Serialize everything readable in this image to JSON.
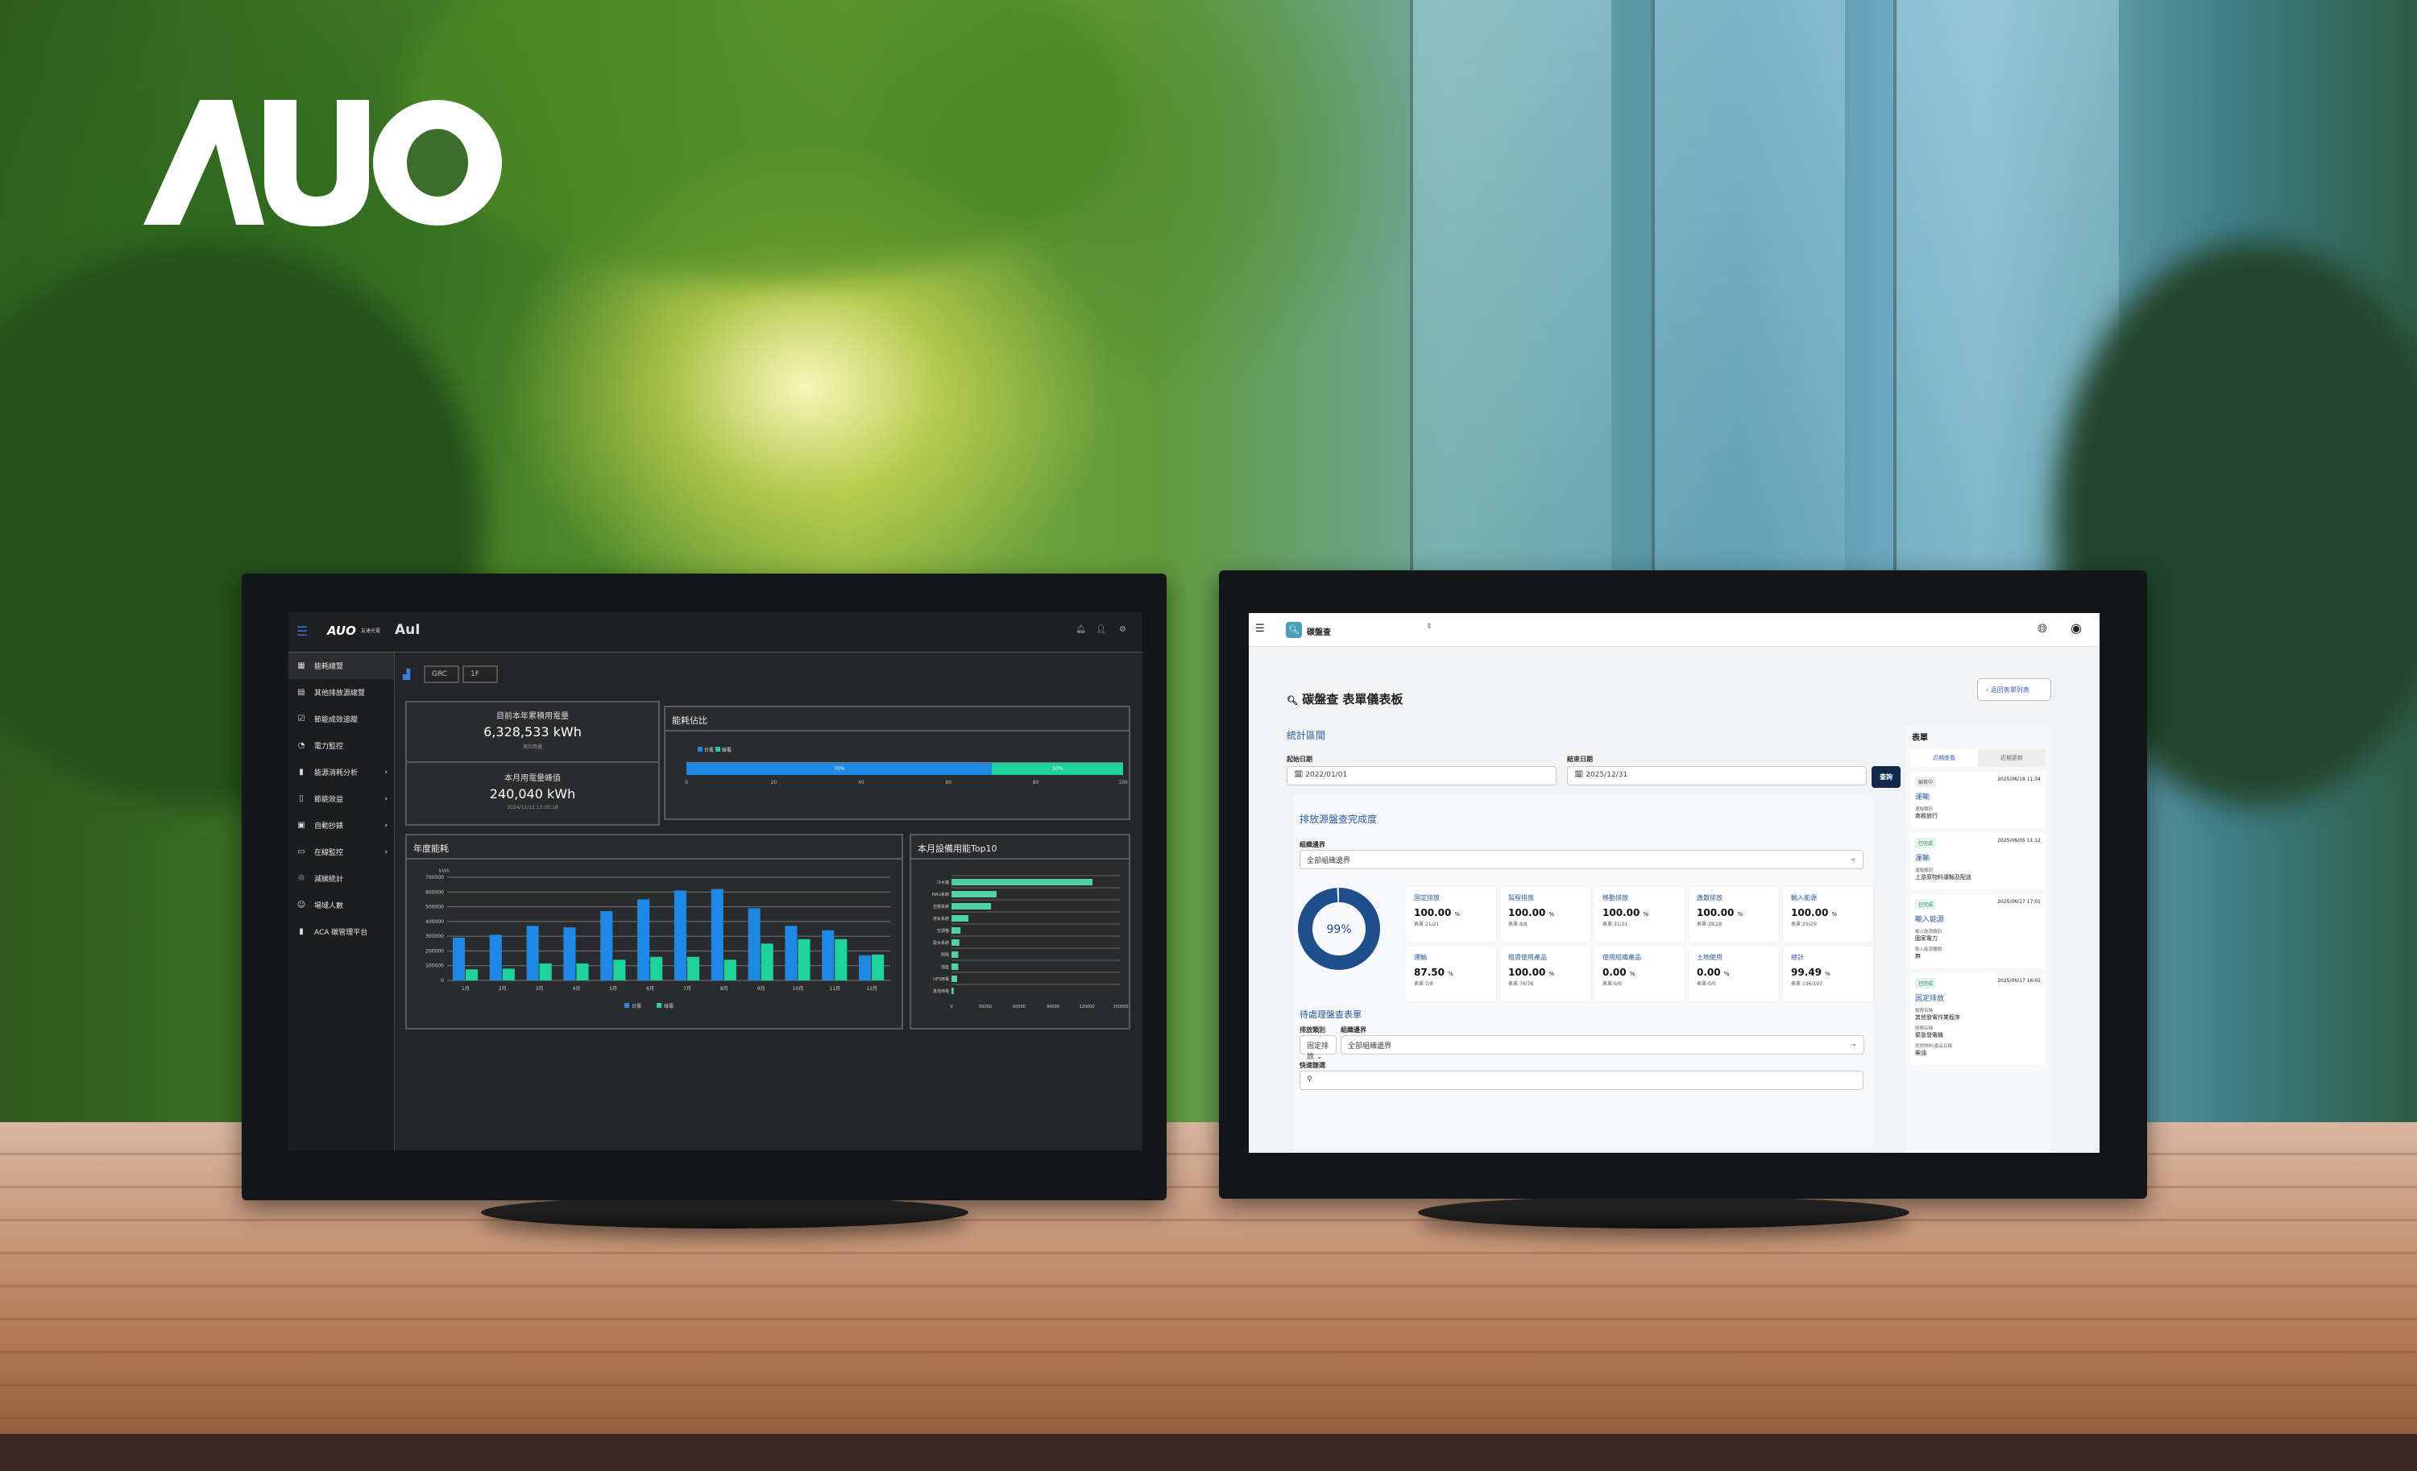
{
  "brand": {
    "logo_text": "AUO"
  },
  "left_dashboard": {
    "logo": "AUO",
    "logo_sub": "友達光電",
    "app_logo": "AuI",
    "sidebar": [
      {
        "label": "能耗總覽",
        "icon": "grid-icon"
      },
      {
        "label": "其他排放源總覽",
        "icon": "table-icon"
      },
      {
        "label": "節能成效追蹤",
        "icon": "checklist-icon"
      },
      {
        "label": "電力監控",
        "icon": "gauge-icon"
      },
      {
        "label": "能源消耗分析",
        "icon": "bar-chart-icon",
        "chevron": "›"
      },
      {
        "label": "節能效益",
        "icon": "phone-icon",
        "chevron": "›"
      },
      {
        "label": "自動抄錶",
        "icon": "meter-icon",
        "chevron": "›"
      },
      {
        "label": "在線監控",
        "icon": "monitor-icon",
        "chevron": "›"
      },
      {
        "label": "減碳統計",
        "icon": "recycle-icon"
      },
      {
        "label": "場域人數",
        "icon": "person-icon"
      },
      {
        "label": "ACA 碳管理平台",
        "icon": "bookmark-icon"
      }
    ],
    "filters": [
      "GRC",
      "1F"
    ],
    "kpi": {
      "annual_label": "目前本年累積用電量",
      "annual_value": "6,328,533 kWh",
      "annual_sub": "案均用量",
      "peak_label": "本月用電量峰值",
      "peak_value": "240,040 kWh",
      "peak_time": "2024/12/12 13:05:18"
    },
    "share": {
      "title": "能耗佔比",
      "legend": [
        "台電",
        "綠電"
      ],
      "values": [
        70,
        30
      ],
      "labels": [
        "70%",
        "30%"
      ],
      "ticks": [
        "0",
        "20",
        "40",
        "60",
        "80",
        "100"
      ],
      "colors": [
        "#1e88e5",
        "#1ed398"
      ]
    }
  },
  "chart_data": [
    {
      "type": "bar",
      "title": "年度能耗",
      "ylabel": "kWh",
      "ylim": [
        0,
        700000
      ],
      "grid": true,
      "legend": "bottom",
      "categories": [
        "1月",
        "2月",
        "3月",
        "4月",
        "5月",
        "6月",
        "7月",
        "8月",
        "9月",
        "10月",
        "11月",
        "12月"
      ],
      "yticks": [
        "0",
        "100000",
        "200000",
        "300000",
        "400000",
        "500000",
        "600000",
        "700000"
      ],
      "series": [
        {
          "name": "台電",
          "color": "#1e88e5",
          "values": [
            290000,
            310000,
            370000,
            360000,
            470000,
            550000,
            610000,
            620000,
            490000,
            370000,
            340000,
            170000
          ]
        },
        {
          "name": "綠電",
          "color": "#1ed398",
          "values": [
            75000,
            80000,
            115000,
            115000,
            140000,
            160000,
            160000,
            140000,
            250000,
            280000,
            280000,
            175000
          ]
        }
      ]
    },
    {
      "type": "bar",
      "orientation": "horizontal",
      "title": "本月設備用能Top10",
      "xlim": [
        0,
        150000
      ],
      "grid": true,
      "categories": [
        "冷水機",
        "MAU系統",
        "空壓系統",
        "排氣系統",
        "空調箱",
        "廢水系統",
        "照明",
        "插座",
        "UPS用電",
        "其他用電"
      ],
      "xticks": [
        "0",
        "30000",
        "60000",
        "90000",
        "120000",
        "150000"
      ],
      "values": [
        125000,
        40000,
        35000,
        15000,
        8000,
        7000,
        6000,
        6000,
        5000,
        2000
      ],
      "color": "#4fd1a1"
    }
  ],
  "right_dashboard": {
    "app_name": "碳盤查",
    "page_title": "碳盤查 表單儀表板",
    "back_button": "返回表單列表",
    "period": {
      "title": "統計區間",
      "start_label": "起始日期",
      "start_value": "2022/01/01",
      "end_label": "結束日期",
      "end_value": "2025/12/31",
      "query": "查詢"
    },
    "completion": {
      "title": "排放源盤查完成度",
      "boundary_label": "組織邊界",
      "boundary_value": "全部組織邊界",
      "donut_label": "99%",
      "donut_value": 99,
      "stats": [
        {
          "name": "固定排放",
          "value": "100.00",
          "unit": "%",
          "count": "表單:21/21"
        },
        {
          "name": "製程排放",
          "value": "100.00",
          "unit": "%",
          "count": "表單:8/8"
        },
        {
          "name": "移動排放",
          "value": "100.00",
          "unit": "%",
          "count": "表單:31/31"
        },
        {
          "name": "逸散排放",
          "value": "100.00",
          "unit": "%",
          "count": "表單:28/28"
        },
        {
          "name": "輸入能源",
          "value": "100.00",
          "unit": "%",
          "count": "表單:25/25"
        },
        {
          "name": "運輸",
          "value": "87.50",
          "unit": "%",
          "count": "表單:7/8"
        },
        {
          "name": "租賃使用產品",
          "value": "100.00",
          "unit": "%",
          "count": "表單:76/76"
        },
        {
          "name": "使用組織產品",
          "value": "0.00",
          "unit": "%",
          "count": "表單:0/0"
        },
        {
          "name": "土地使用",
          "value": "0.00",
          "unit": "%",
          "count": "表單:0/0"
        },
        {
          "name": "總計",
          "value": "99.49",
          "unit": "%",
          "count": "表單:196/197"
        }
      ]
    },
    "pending": {
      "title": "待處理盤查表單",
      "category_label": "排放類別",
      "category_value": "固定排放",
      "boundary_label": "組織邊界",
      "boundary_value": "全部組織邊界",
      "filter_label": "快速篩選",
      "filter_placeholder": ""
    },
    "forms": {
      "title": "表單",
      "tabs": [
        "近期查看",
        "近期更新"
      ],
      "items": [
        {
          "status": "編寫中",
          "time": "2025/06/18 11:34",
          "type": "運輸",
          "fields": [
            [
              "運輸類別",
              "商務旅行"
            ]
          ]
        },
        {
          "status": "已完成",
          "time": "2025/06/05 11:12",
          "type": "運輸",
          "fields": [
            [
              "運輸類別",
              "上游原物料運輸及配送"
            ]
          ]
        },
        {
          "status": "已完成",
          "time": "2025/06/17 17:01",
          "type": "輸入能源",
          "fields": [
            [
              "輸入能源類別",
              "國家電力"
            ],
            [
              "輸入能源種類",
              "無"
            ]
          ]
        },
        {
          "status": "已完成",
          "time": "2025/06/17 16:02",
          "type": "固定排放",
          "fields": [
            [
              "製程名稱",
              "其他發電作業程序"
            ],
            [
              "設備名稱",
              "緊急發電機"
            ],
            [
              "原燃物料/產品名稱",
              "柴油"
            ]
          ]
        }
      ]
    }
  }
}
